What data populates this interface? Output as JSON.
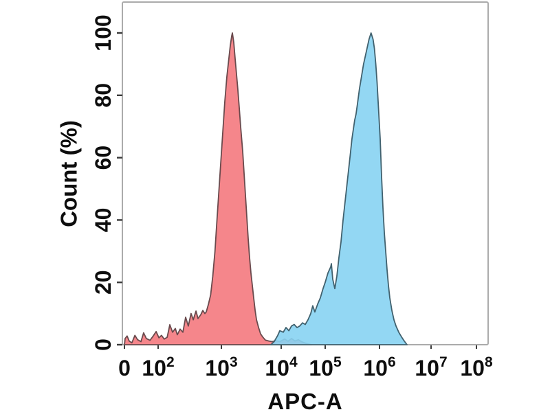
{
  "style": {
    "background": "#ffffff",
    "frame_color": "#ababab",
    "tick_color": "#3a3a3a",
    "label_color": "#0d0d0d",
    "red_fill": "#f4757b",
    "red_edge": "#6a4a4d",
    "blue_fill": "#87d3f2",
    "blue_edge": "#41616e"
  },
  "chart_data": {
    "type": "area",
    "subtype": "flow-cytometry-histogram-overlay",
    "title": "",
    "xlabel": "APC-A",
    "ylabel": "Count (%)",
    "x_scale": "biexponential: 0 then log decades 100 to 1e8",
    "xlim_labels": [
      "0",
      "1e8"
    ],
    "ylim": [
      0,
      100
    ],
    "grid": false,
    "legend": null,
    "y_ticks": [
      {
        "label": "0",
        "value": 0
      },
      {
        "label": "20",
        "value": 20
      },
      {
        "label": "40",
        "value": 40
      },
      {
        "label": "60",
        "value": 60
      },
      {
        "label": "80",
        "value": 80
      },
      {
        "label": "100",
        "value": 100
      }
    ],
    "x_ticks": [
      {
        "label": "0",
        "sup": "",
        "value": 0
      },
      {
        "label": "10",
        "sup": "2",
        "value": 100
      },
      {
        "label": "10",
        "sup": "3",
        "value": 1000
      },
      {
        "label": "10",
        "sup": "4",
        "value": 10000
      },
      {
        "label": "10",
        "sup": "5",
        "value": 100000
      },
      {
        "label": "10",
        "sup": "6",
        "value": 1000000
      },
      {
        "label": "10",
        "sup": "7",
        "value": 10000000
      },
      {
        "label": "10",
        "sup": "8",
        "value": 100000000
      }
    ],
    "series": [
      {
        "name": "red-histogram",
        "color_key": "red",
        "peak_apc": 1500,
        "peak_pct": 100,
        "points": [
          [
            0,
            0
          ],
          [
            2,
            2
          ],
          [
            8,
            2.8
          ],
          [
            14,
            1.2
          ],
          [
            22,
            0.6
          ],
          [
            31,
            3
          ],
          [
            39,
            1.6
          ],
          [
            49,
            1
          ],
          [
            57,
            3.8
          ],
          [
            65,
            2
          ],
          [
            76,
            1.4
          ],
          [
            84,
            2.6
          ],
          [
            94,
            4.2
          ],
          [
            103,
            2.2
          ],
          [
            113,
            3
          ],
          [
            125,
            1.8
          ],
          [
            139,
            2.4
          ],
          [
            153,
            6.4
          ],
          [
            169,
            4
          ],
          [
            187,
            5.2
          ],
          [
            201,
            3.2
          ],
          [
            223,
            5
          ],
          [
            246,
            4
          ],
          [
            272,
            8.8
          ],
          [
            300,
            6
          ],
          [
            332,
            10
          ],
          [
            359,
            8
          ],
          [
            397,
            10.8
          ],
          [
            427,
            8.4
          ],
          [
            472,
            9.6
          ],
          [
            509,
            11
          ],
          [
            549,
            10
          ],
          [
            577,
            10.5
          ],
          [
            625,
            13
          ],
          [
            677,
            16
          ],
          [
            732,
            22
          ],
          [
            792,
            30
          ],
          [
            839,
            38
          ],
          [
            904,
            48
          ],
          [
            975,
            58
          ],
          [
            1054,
            68
          ],
          [
            1141,
            78
          ],
          [
            1236,
            86
          ],
          [
            1338,
            92
          ],
          [
            1411,
            96
          ],
          [
            1487,
            99
          ],
          [
            1527,
            100
          ],
          [
            1610,
            97
          ],
          [
            1694,
            92
          ],
          [
            1787,
            87
          ],
          [
            1884,
            82
          ],
          [
            1988,
            76
          ],
          [
            2096,
            70
          ],
          [
            2270,
            62
          ],
          [
            2395,
            55
          ],
          [
            2524,
            48
          ],
          [
            2662,
            41
          ],
          [
            2808,
            34
          ],
          [
            2961,
            28
          ],
          [
            3122,
            23
          ],
          [
            3293,
            19
          ],
          [
            3473,
            15
          ],
          [
            3663,
            11
          ],
          [
            3862,
            8
          ],
          [
            4181,
            5.5
          ],
          [
            4524,
            3.5
          ],
          [
            4896,
            2.5
          ],
          [
            5432,
            1.5
          ],
          [
            6189,
            1.2
          ],
          [
            7050,
            1
          ],
          [
            8181,
            1.3
          ],
          [
            9495,
            1
          ],
          [
            11980,
            1.8
          ],
          [
            14330,
            1.1
          ],
          [
            17160,
            2
          ],
          [
            20550,
            1.2
          ],
          [
            24600,
            1.6
          ],
          [
            29460,
            0.9
          ],
          [
            35270,
            0.5
          ],
          [
            42240,
            0.2
          ],
          [
            48790,
            0
          ]
        ]
      },
      {
        "name": "blue-histogram",
        "color_key": "blue",
        "peak_apc": 700000,
        "peak_pct": 100,
        "points": [
          [
            6730,
            0
          ],
          [
            7639,
            1
          ],
          [
            8760,
            3
          ],
          [
            9495,
            4.5
          ],
          [
            11140,
            4
          ],
          [
            12870,
            5.5
          ],
          [
            14980,
            4.5
          ],
          [
            17160,
            6
          ],
          [
            19760,
            6.5
          ],
          [
            22870,
            5.5
          ],
          [
            26330,
            6
          ],
          [
            30480,
            7
          ],
          [
            35270,
            6.5
          ],
          [
            40680,
            8
          ],
          [
            47050,
            10
          ],
          [
            52180,
            12.5
          ],
          [
            58290,
            10.5
          ],
          [
            67380,
            13
          ],
          [
            77570,
            15
          ],
          [
            89340,
            18
          ],
          [
            100000,
            20
          ],
          [
            112400,
            23
          ],
          [
            126500,
            25
          ],
          [
            130000,
            26
          ],
          [
            137800,
            21
          ],
          [
            150400,
            18
          ],
          [
            164100,
            22
          ],
          [
            179100,
            28
          ],
          [
            195400,
            33
          ],
          [
            213300,
            40
          ],
          [
            232800,
            46
          ],
          [
            254000,
            52
          ],
          [
            277200,
            58
          ],
          [
            293600,
            62
          ],
          [
            311000,
            66
          ],
          [
            329500,
            69
          ],
          [
            349000,
            72
          ],
          [
            369700,
            74
          ],
          [
            391600,
            77
          ],
          [
            427400,
            82
          ],
          [
            466400,
            86
          ],
          [
            509000,
            90
          ],
          [
            555500,
            93
          ],
          [
            606200,
            96
          ],
          [
            641900,
            98
          ],
          [
            699000,
            100
          ],
          [
            761100,
            98
          ],
          [
            805900,
            95
          ],
          [
            853400,
            90
          ],
          [
            903600,
            84
          ],
          [
            956800,
            76
          ],
          [
            1031000,
            66
          ],
          [
            1096000,
            54
          ],
          [
            1166000,
            44
          ],
          [
            1240000,
            36
          ],
          [
            1319000,
            30
          ],
          [
            1403000,
            24
          ],
          [
            1492000,
            19
          ],
          [
            1587000,
            15
          ],
          [
            1740000,
            11
          ],
          [
            1907000,
            8
          ],
          [
            2090000,
            6
          ],
          [
            2362000,
            4
          ],
          [
            2669000,
            2.5
          ],
          [
            3017000,
            1.2
          ],
          [
            3410000,
            0
          ]
        ]
      }
    ]
  }
}
